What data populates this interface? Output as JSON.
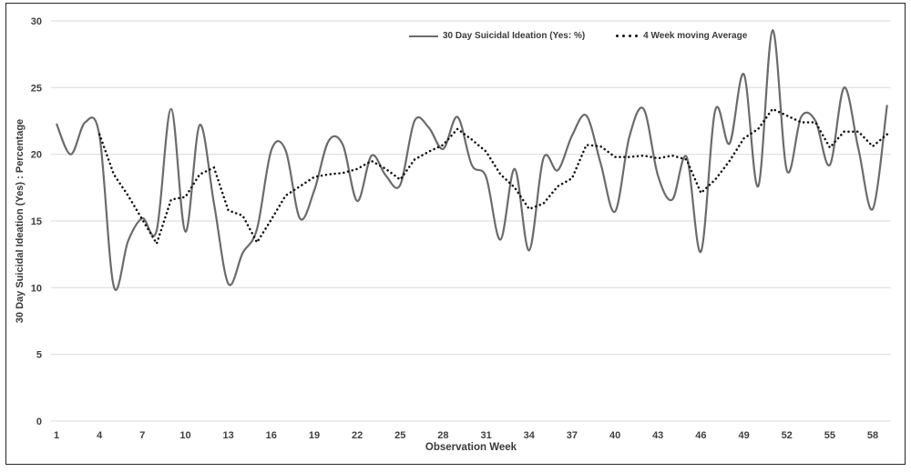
{
  "chart_data": {
    "type": "line",
    "title": "",
    "xlabel": "Observation Week",
    "ylabel": "30 Day Suicidal Ideation (Yes) : Percentage",
    "xlim": [
      1,
      59
    ],
    "ylim": [
      0,
      30
    ],
    "x_ticks": [
      1,
      4,
      7,
      10,
      13,
      16,
      19,
      22,
      25,
      28,
      31,
      34,
      37,
      40,
      43,
      46,
      49,
      52,
      55,
      58
    ],
    "y_ticks": [
      0,
      5,
      10,
      15,
      20,
      25,
      30
    ],
    "grid": "horizontal-only",
    "gridline_color": "#d9d9d9",
    "legend_position": "top-center",
    "series": [
      {
        "name": "30 Day Suicidal Ideation (Yes: %)",
        "style": "solid-smooth",
        "color": "#6b6b6b",
        "start_week": 1,
        "values": [
          22.3,
          20.0,
          22.4,
          21.4,
          10.1,
          13.5,
          15.2,
          14.3,
          23.4,
          14.2,
          22.2,
          16.3,
          10.3,
          12.6,
          14.4,
          20.3,
          20.3,
          15.2,
          17.3,
          21.0,
          20.7,
          16.5,
          19.9,
          18.4,
          17.7,
          22.5,
          22.0,
          20.4,
          22.8,
          19.2,
          18.3,
          13.6,
          18.9,
          12.8,
          19.7,
          18.8,
          21.4,
          22.9,
          19.3,
          15.7,
          21.3,
          23.4,
          18.4,
          16.6,
          19.8,
          12.7,
          23.3,
          20.8,
          26.0,
          17.6,
          29.3,
          18.8,
          22.8,
          22.5,
          19.2,
          25.0,
          20.4,
          15.9,
          23.7
        ]
      },
      {
        "name": "4 Week moving Average",
        "style": "round-dots",
        "color": "#111111",
        "start_week": 4,
        "values": [
          21.5,
          18.5,
          16.9,
          15.1,
          13.3,
          16.6,
          16.8,
          18.5,
          19.0,
          15.8,
          15.4,
          13.4,
          15.1,
          16.9,
          17.6,
          18.3,
          18.5,
          18.6,
          18.9,
          19.5,
          18.9,
          18.1,
          19.6,
          20.2,
          20.7,
          21.9,
          21.1,
          20.2,
          18.5,
          17.5,
          15.9,
          16.3,
          17.6,
          18.2,
          20.7,
          20.6,
          19.8,
          19.8,
          19.9,
          19.7,
          19.9,
          19.6,
          17.1,
          18.1,
          19.5,
          21.2,
          21.9,
          23.4,
          22.9,
          22.4,
          22.4,
          20.5,
          21.7,
          21.7,
          20.6,
          21.5
        ]
      }
    ]
  },
  "colors": {
    "background": "#ffffff",
    "border": "#262626",
    "grid": "#d9d9d9",
    "tick_text": "#404040",
    "axis_title_text": "#3a3a3a",
    "solid_series": "#6b6b6b",
    "dotted_series": "#111111"
  }
}
